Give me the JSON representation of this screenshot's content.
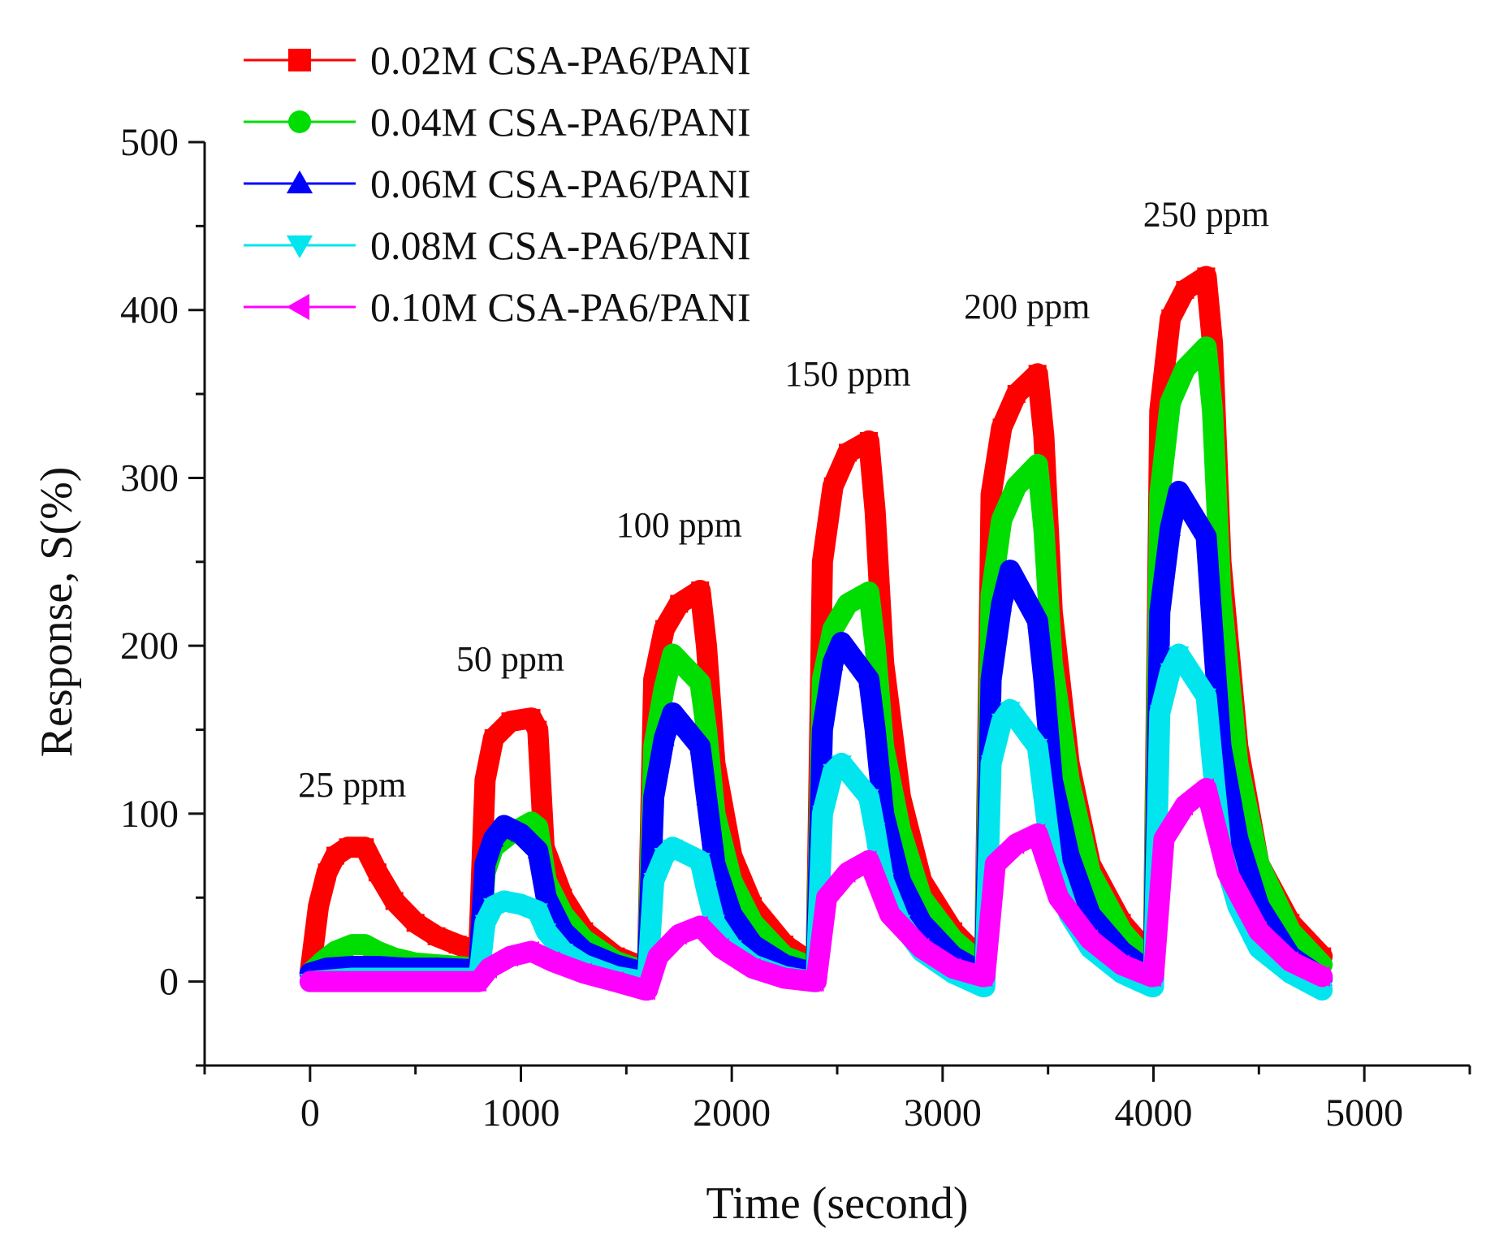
{
  "chart_data": {
    "type": "line",
    "title": "",
    "xlabel": "Time (second)",
    "ylabel": "Response, S(%)",
    "xlim": [
      -500,
      5500
    ],
    "ylim": [
      -50,
      500
    ],
    "xticks": [
      0,
      1000,
      2000,
      3000,
      4000,
      5000
    ],
    "yticks": [
      0,
      100,
      200,
      300,
      400,
      500
    ],
    "grid": false,
    "legend_position": "top-left",
    "annotations": [
      {
        "text": "25 ppm",
        "x": 200,
        "y": 110
      },
      {
        "text": "50 ppm",
        "x": 950,
        "y": 185
      },
      {
        "text": "100 ppm",
        "x": 1750,
        "y": 265
      },
      {
        "text": "150 ppm",
        "x": 2550,
        "y": 355
      },
      {
        "text": "200 ppm",
        "x": 3400,
        "y": 395
      },
      {
        "text": "250 ppm",
        "x": 4250,
        "y": 450
      }
    ],
    "series": [
      {
        "name": "0.02M CSA-PA6/PANI",
        "color": "#ff0000",
        "marker": "square",
        "x": [
          0,
          40,
          80,
          120,
          180,
          260,
          320,
          400,
          500,
          600,
          700,
          790,
          800,
          830,
          870,
          950,
          1050,
          1080,
          1110,
          1200,
          1300,
          1450,
          1590,
          1600,
          1630,
          1680,
          1750,
          1850,
          1880,
          1920,
          2000,
          2100,
          2250,
          2390,
          2400,
          2430,
          2480,
          2550,
          2650,
          2680,
          2720,
          2800,
          2900,
          3050,
          3190,
          3200,
          3230,
          3280,
          3350,
          3450,
          3480,
          3520,
          3600,
          3700,
          3850,
          3990,
          4000,
          4030,
          4080,
          4150,
          4250,
          4280,
          4320,
          4400,
          4500,
          4650,
          4800
        ],
        "y": [
          5,
          45,
          65,
          75,
          80,
          80,
          65,
          48,
          35,
          27,
          22,
          18,
          18,
          120,
          145,
          155,
          157,
          150,
          80,
          50,
          30,
          15,
          8,
          8,
          180,
          210,
          225,
          233,
          200,
          130,
          75,
          45,
          22,
          10,
          10,
          250,
          295,
          315,
          322,
          280,
          190,
          110,
          60,
          30,
          12,
          12,
          290,
          330,
          350,
          362,
          325,
          220,
          130,
          70,
          35,
          15,
          15,
          340,
          395,
          412,
          420,
          380,
          250,
          140,
          70,
          35,
          15
        ]
      },
      {
        "name": "0.04M CSA-PA6/PANI",
        "color": "#00dd00",
        "marker": "circle",
        "x": [
          0,
          60,
          120,
          200,
          260,
          320,
          400,
          500,
          600,
          700,
          790,
          800,
          830,
          870,
          950,
          1050,
          1080,
          1120,
          1200,
          1300,
          1450,
          1590,
          1600,
          1630,
          1680,
          1720,
          1850,
          1880,
          1920,
          2000,
          2100,
          2250,
          2390,
          2400,
          2430,
          2480,
          2550,
          2650,
          2680,
          2720,
          2800,
          2900,
          3050,
          3190,
          3200,
          3230,
          3280,
          3350,
          3450,
          3480,
          3520,
          3600,
          3700,
          3850,
          3990,
          4000,
          4030,
          4080,
          4150,
          4250,
          4280,
          4320,
          4400,
          4500,
          4650,
          4800
        ],
        "y": [
          5,
          12,
          18,
          22,
          22,
          18,
          14,
          11,
          10,
          9,
          8,
          8,
          65,
          80,
          88,
          95,
          92,
          60,
          40,
          25,
          12,
          6,
          6,
          140,
          175,
          195,
          178,
          150,
          100,
          60,
          35,
          15,
          8,
          8,
          180,
          210,
          225,
          232,
          200,
          140,
          90,
          50,
          25,
          10,
          10,
          230,
          275,
          295,
          308,
          270,
          190,
          120,
          65,
          30,
          10,
          10,
          290,
          345,
          365,
          378,
          340,
          230,
          130,
          70,
          30,
          10
        ]
      },
      {
        "name": "0.06M CSA-PA6/PANI",
        "color": "#0000ff",
        "marker": "triangle-up",
        "x": [
          0,
          80,
          200,
          320,
          450,
          600,
          790,
          800,
          830,
          870,
          920,
          1000,
          1080,
          1120,
          1200,
          1300,
          1450,
          1590,
          1600,
          1630,
          1680,
          1720,
          1850,
          1880,
          1920,
          2000,
          2100,
          2250,
          2390,
          2400,
          2430,
          2480,
          2520,
          2650,
          2680,
          2720,
          2800,
          2900,
          3050,
          3190,
          3200,
          3230,
          3280,
          3320,
          3450,
          3480,
          3520,
          3600,
          3700,
          3850,
          3990,
          4000,
          4030,
          4080,
          4120,
          4250,
          4280,
          4320,
          4400,
          4500,
          4650,
          4800
        ],
        "y": [
          5,
          8,
          9,
          9,
          8,
          8,
          7,
          7,
          70,
          85,
          93,
          88,
          78,
          50,
          30,
          18,
          10,
          5,
          5,
          110,
          145,
          160,
          140,
          110,
          70,
          40,
          22,
          10,
          5,
          5,
          150,
          190,
          202,
          180,
          150,
          100,
          60,
          35,
          15,
          5,
          5,
          180,
          225,
          245,
          215,
          180,
          120,
          75,
          40,
          18,
          5,
          5,
          220,
          270,
          292,
          265,
          210,
          140,
          85,
          45,
          15,
          2
        ]
      },
      {
        "name": "0.08M CSA-PA6/PANI",
        "color": "#00e5ee",
        "marker": "triangle-down",
        "x": [
          0,
          200,
          400,
          600,
          790,
          800,
          830,
          870,
          920,
          1000,
          1080,
          1120,
          1200,
          1300,
          1450,
          1590,
          1600,
          1630,
          1680,
          1720,
          1850,
          1880,
          1920,
          2000,
          2100,
          2250,
          2390,
          2400,
          2430,
          2480,
          2520,
          2650,
          2680,
          2720,
          2800,
          2900,
          3050,
          3190,
          3200,
          3230,
          3280,
          3320,
          3450,
          3480,
          3520,
          3600,
          3700,
          3850,
          3990,
          4000,
          4030,
          4080,
          4120,
          4250,
          4280,
          4320,
          4400,
          4500,
          4650,
          4800
        ],
        "y": [
          0,
          2,
          2,
          2,
          2,
          2,
          35,
          45,
          48,
          46,
          42,
          30,
          18,
          10,
          3,
          0,
          0,
          60,
          75,
          80,
          72,
          55,
          35,
          20,
          10,
          3,
          0,
          0,
          100,
          125,
          130,
          110,
          90,
          60,
          35,
          18,
          5,
          -3,
          -3,
          130,
          155,
          162,
          140,
          110,
          70,
          40,
          20,
          5,
          -3,
          -3,
          160,
          185,
          195,
          170,
          130,
          80,
          45,
          20,
          5,
          -5
        ]
      },
      {
        "name": "0.10M CSA-PA6/PANI",
        "color": "#ff00ff",
        "marker": "triangle-left",
        "x": [
          0,
          200,
          400,
          600,
          790,
          800,
          850,
          950,
          1050,
          1150,
          1300,
          1450,
          1590,
          1600,
          1650,
          1750,
          1850,
          1950,
          2100,
          2250,
          2390,
          2400,
          2450,
          2550,
          2650,
          2750,
          2900,
          3050,
          3190,
          3200,
          3250,
          3350,
          3450,
          3550,
          3700,
          3850,
          3990,
          4000,
          4050,
          4150,
          4250,
          4350,
          4500,
          4650,
          4800
        ],
        "y": [
          0,
          0,
          0,
          0,
          0,
          0,
          8,
          15,
          18,
          12,
          5,
          0,
          -5,
          -5,
          15,
          28,
          33,
          20,
          8,
          2,
          0,
          0,
          50,
          65,
          72,
          40,
          20,
          8,
          3,
          3,
          70,
          82,
          88,
          50,
          25,
          10,
          3,
          3,
          85,
          105,
          115,
          65,
          30,
          12,
          3
        ]
      }
    ]
  }
}
